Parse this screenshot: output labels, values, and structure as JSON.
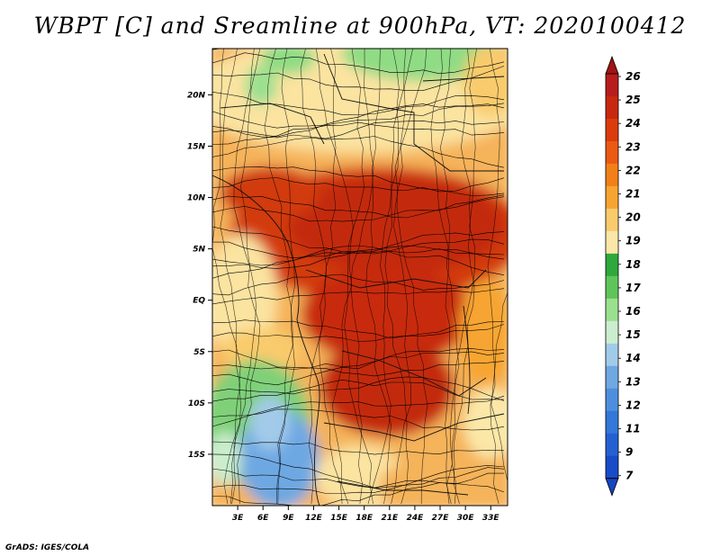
{
  "title": "WBPT [C] and Sreamline at 900hPa, VT: 2020100412",
  "credit": "GrADS: IGES/COLA",
  "map": {
    "lat_labels": [
      "20N",
      "15N",
      "10N",
      "5N",
      "EQ",
      "5S",
      "10S",
      "15S"
    ],
    "lat_values": [
      20,
      15,
      10,
      5,
      0,
      -5,
      -10,
      -15
    ],
    "lon_labels": [
      "3E",
      "6E",
      "9E",
      "12E",
      "15E",
      "18E",
      "21E",
      "24E",
      "27E",
      "30E",
      "33E"
    ],
    "lon_values": [
      3,
      6,
      9,
      12,
      15,
      18,
      21,
      24,
      27,
      30,
      33
    ],
    "lat_range": [
      -20,
      24.5
    ],
    "lon_range": [
      0,
      35
    ]
  },
  "colorbar": {
    "labels": [
      "26",
      "25",
      "24",
      "23",
      "22",
      "21",
      "20",
      "19",
      "18",
      "17",
      "16",
      "15",
      "14",
      "13",
      "12",
      "11",
      "9",
      "7"
    ],
    "colors": [
      "#b81c1c",
      "#c8280f",
      "#dc3b0b",
      "#eb5a14",
      "#f27f17",
      "#f7a531",
      "#f9cb6c",
      "#fbe7a7",
      "#2fa83c",
      "#5fc45a",
      "#9be08f",
      "#cbeece",
      "#a2cbe9",
      "#6fa8e3",
      "#4d8fde",
      "#3377d8",
      "#2460d2",
      "#174bc8"
    ],
    "top_arrow_color": "#a01414",
    "bottom_arrow_color": "#1445c0"
  }
}
